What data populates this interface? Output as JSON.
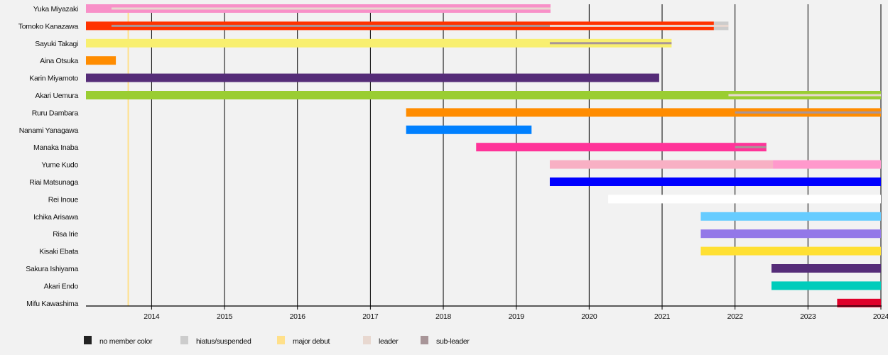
{
  "chart_data": {
    "type": "timeline",
    "xlim": [
      2013.1,
      2024.0
    ],
    "x_ticks": [
      "2014",
      "2015",
      "2016",
      "2017",
      "2018",
      "2019",
      "2020",
      "2021",
      "2022",
      "2023",
      "2024"
    ],
    "grid": true,
    "legend_position": "bottom-left",
    "legend": [
      {
        "label": "no member color",
        "color": "#222222"
      },
      {
        "label": "hiatus/suspended",
        "color": "#cccccc"
      },
      {
        "label": "major debut",
        "color": "#ffe08a"
      },
      {
        "label": "leader",
        "color": "#e8d8d0"
      },
      {
        "label": "sub-leader",
        "color": "#a89598"
      }
    ],
    "events": [
      {
        "label": "major debut",
        "date": 2013.68,
        "color": "#ffe08a"
      }
    ],
    "members": [
      {
        "name": "Yuka Miyazaki",
        "segments": [
          {
            "from": 2013.1,
            "to": 2019.47,
            "color": "#f890c8"
          }
        ],
        "roles": [
          {
            "role": "leader",
            "from": 2013.45,
            "to": 2019.47
          }
        ]
      },
      {
        "name": "Tomoko Kanazawa",
        "segments": [
          {
            "from": 2013.1,
            "to": 2021.71,
            "color": "#ff3300"
          },
          {
            "from": 2021.71,
            "to": 2021.91,
            "color": "#cccccc",
            "status": "hiatus/suspended"
          }
        ],
        "roles": [
          {
            "role": "sub-leader",
            "from": 2013.45,
            "to": 2019.46
          },
          {
            "role": "leader",
            "from": 2019.46,
            "to": 2021.91
          }
        ]
      },
      {
        "name": "Sayuki Takagi",
        "segments": [
          {
            "from": 2013.1,
            "to": 2021.13,
            "color": "#f8ef70"
          }
        ],
        "roles": [
          {
            "role": "sub-leader",
            "from": 2019.46,
            "to": 2021.13
          }
        ]
      },
      {
        "name": "Aina Otsuka",
        "segments": [
          {
            "from": 2013.1,
            "to": 2013.51,
            "color": "#ff8c00"
          }
        ],
        "roles": []
      },
      {
        "name": "Karin Miyamoto",
        "segments": [
          {
            "from": 2013.1,
            "to": 2020.96,
            "color": "#552c78"
          }
        ],
        "roles": []
      },
      {
        "name": "Akari Uemura",
        "segments": [
          {
            "from": 2013.1,
            "to": 2024.0,
            "color": "#9acd32"
          }
        ],
        "roles": [
          {
            "role": "leader",
            "from": 2021.91,
            "to": 2024.0
          }
        ]
      },
      {
        "name": "Ruru Dambara",
        "segments": [
          {
            "from": 2017.49,
            "to": 2024.0,
            "color": "#ff8c00"
          }
        ],
        "roles": [
          {
            "role": "sub-leader",
            "from": 2022.0,
            "to": 2024.0
          }
        ]
      },
      {
        "name": "Nanami Yanagawa",
        "segments": [
          {
            "from": 2017.49,
            "to": 2019.21,
            "color": "#0080ff"
          }
        ],
        "roles": []
      },
      {
        "name": "Manaka Inaba",
        "segments": [
          {
            "from": 2018.45,
            "to": 2022.43,
            "color": "#ff3399"
          }
        ],
        "roles": [
          {
            "role": "sub-leader",
            "from": 2022.0,
            "to": 2022.43
          }
        ]
      },
      {
        "name": "Yume Kudo",
        "segments": [
          {
            "from": 2019.46,
            "to": 2022.52,
            "color": "#f8b0c4"
          },
          {
            "from": 2022.52,
            "to": 2024.0,
            "color": "#ff99cc"
          }
        ],
        "roles": []
      },
      {
        "name": "Riai Matsunaga",
        "segments": [
          {
            "from": 2019.46,
            "to": 2024.0,
            "color": "#0000ff"
          }
        ],
        "roles": []
      },
      {
        "name": "Rei Inoue",
        "segments": [
          {
            "from": 2020.26,
            "to": 2024.0,
            "color": "#ffffff"
          }
        ],
        "roles": []
      },
      {
        "name": "Ichika Arisawa",
        "segments": [
          {
            "from": 2021.53,
            "to": 2024.0,
            "color": "#66ccff"
          }
        ],
        "roles": []
      },
      {
        "name": "Risa Irie",
        "segments": [
          {
            "from": 2021.53,
            "to": 2024.0,
            "color": "#9378e8"
          }
        ],
        "roles": []
      },
      {
        "name": "Kisaki Ebata",
        "segments": [
          {
            "from": 2021.53,
            "to": 2024.0,
            "color": "#ffe033"
          }
        ],
        "roles": []
      },
      {
        "name": "Sakura Ishiyama",
        "segments": [
          {
            "from": 2022.5,
            "to": 2024.0,
            "color": "#552c78"
          }
        ],
        "roles": []
      },
      {
        "name": "Akari Endo",
        "segments": [
          {
            "from": 2022.5,
            "to": 2024.0,
            "color": "#00ccbb"
          }
        ],
        "roles": []
      },
      {
        "name": "Mifu Kawashima",
        "segments": [
          {
            "from": 2023.4,
            "to": 2024.0,
            "color": "#e0002a"
          }
        ],
        "roles": []
      }
    ],
    "role_colors": {
      "leader": "#e8d8d0",
      "sub-leader": "#a89598"
    }
  }
}
